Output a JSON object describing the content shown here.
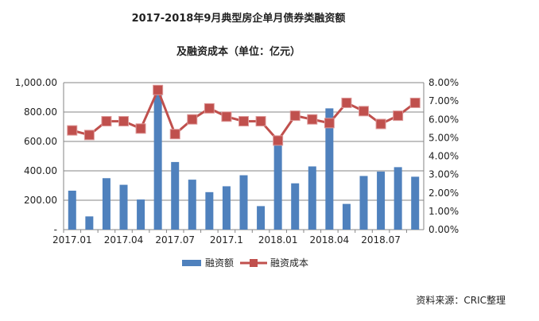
{
  "chart_data": {
    "type": "bar+line",
    "title": "2017-2018年9月典型房企单月债券类融资额",
    "subtitle": "及融资成本（单位：亿元）",
    "categories": [
      "2017.01",
      "2017.02",
      "2017.03",
      "2017.04",
      "2017.05",
      "2017.06",
      "2017.07",
      "2017.08",
      "2017.09",
      "2017.1",
      "2017.11",
      "2017.12",
      "2018.01",
      "2018.02",
      "2018.03",
      "2018.04",
      "2018.05",
      "2018.06",
      "2018.07",
      "2018.08",
      "2018.09"
    ],
    "x_tick_labels": [
      "2017.01",
      "2017.04",
      "2017.07",
      "2017.1",
      "2018.01",
      "2018.04",
      "2018.07"
    ],
    "series": [
      {
        "name": "融资额",
        "type": "bar",
        "axis": "left",
        "color": "#4f81bd",
        "values": [
          265,
          90,
          350,
          305,
          205,
          930,
          460,
          340,
          255,
          295,
          370,
          160,
          580,
          315,
          430,
          825,
          175,
          365,
          395,
          425,
          360
        ]
      },
      {
        "name": "融资成本",
        "type": "line",
        "axis": "right",
        "color": "#c0504d",
        "values": [
          5.4,
          5.15,
          5.9,
          5.9,
          5.5,
          7.6,
          5.2,
          6.0,
          6.6,
          6.15,
          5.9,
          5.9,
          4.85,
          6.2,
          6.0,
          5.8,
          6.9,
          6.45,
          5.75,
          6.2,
          6.9
        ]
      }
    ],
    "y_left": {
      "range": [
        0,
        1000
      ],
      "ticks": [
        "-",
        "200.00",
        "400.00",
        "600.00",
        "800.00",
        "1,000.00"
      ]
    },
    "y_right": {
      "range": [
        0,
        8
      ],
      "ticks": [
        "0.00%",
        "1.00%",
        "2.00%",
        "3.00%",
        "4.00%",
        "5.00%",
        "6.00%",
        "7.00%",
        "8.00%"
      ]
    },
    "grid": true,
    "legend_placement": "bottom",
    "source": "资料来源：CRIC整理"
  }
}
